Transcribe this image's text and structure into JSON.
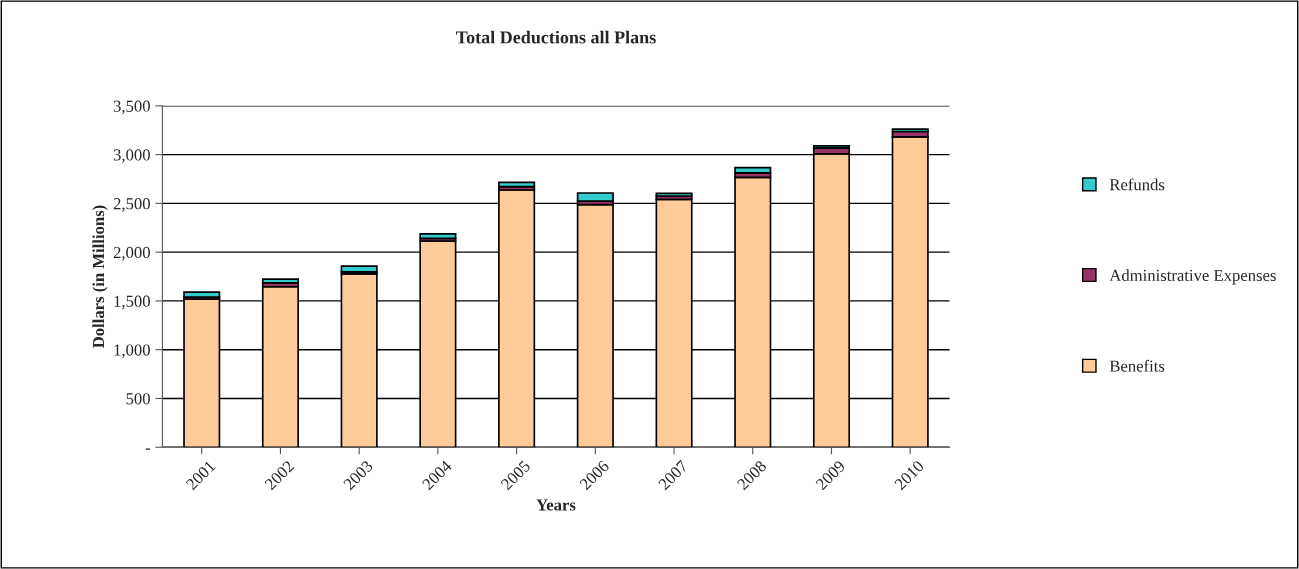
{
  "chart_data": {
    "type": "bar",
    "stacked": true,
    "title": "Total Deductions all Plans",
    "xlabel": "Years",
    "ylabel": "Dollars (in Millions)",
    "categories": [
      "2001",
      "2002",
      "2003",
      "2004",
      "2005",
      "2006",
      "2007",
      "2008",
      "2009",
      "2010"
    ],
    "series": [
      {
        "name": "Benefits",
        "color": "#ffcc99",
        "values": [
          1520,
          1645,
          1778,
          2113,
          2637,
          2487,
          2541,
          2767,
          3007,
          3182
        ]
      },
      {
        "name": "Administrative Expenses",
        "color": "#993366",
        "values": [
          20,
          40,
          20,
          28,
          34,
          37,
          35,
          45,
          62,
          55
        ]
      },
      {
        "name": "Refunds",
        "color": "#33cccc",
        "values": [
          50,
          38,
          58,
          47,
          45,
          82,
          27,
          55,
          20,
          24
        ]
      }
    ],
    "ylim": [
      0,
      3500
    ],
    "yticks": [
      {
        "value": 0,
        "label": "-"
      },
      {
        "value": 500,
        "label": "500"
      },
      {
        "value": 1000,
        "label": "1,000"
      },
      {
        "value": 1500,
        "label": "1,500"
      },
      {
        "value": 2000,
        "label": "2,000"
      },
      {
        "value": 2500,
        "label": "2,500"
      },
      {
        "value": 3000,
        "label": "3,000"
      },
      {
        "value": 3500,
        "label": "3,500"
      }
    ],
    "grid": "y",
    "legend": "right"
  }
}
